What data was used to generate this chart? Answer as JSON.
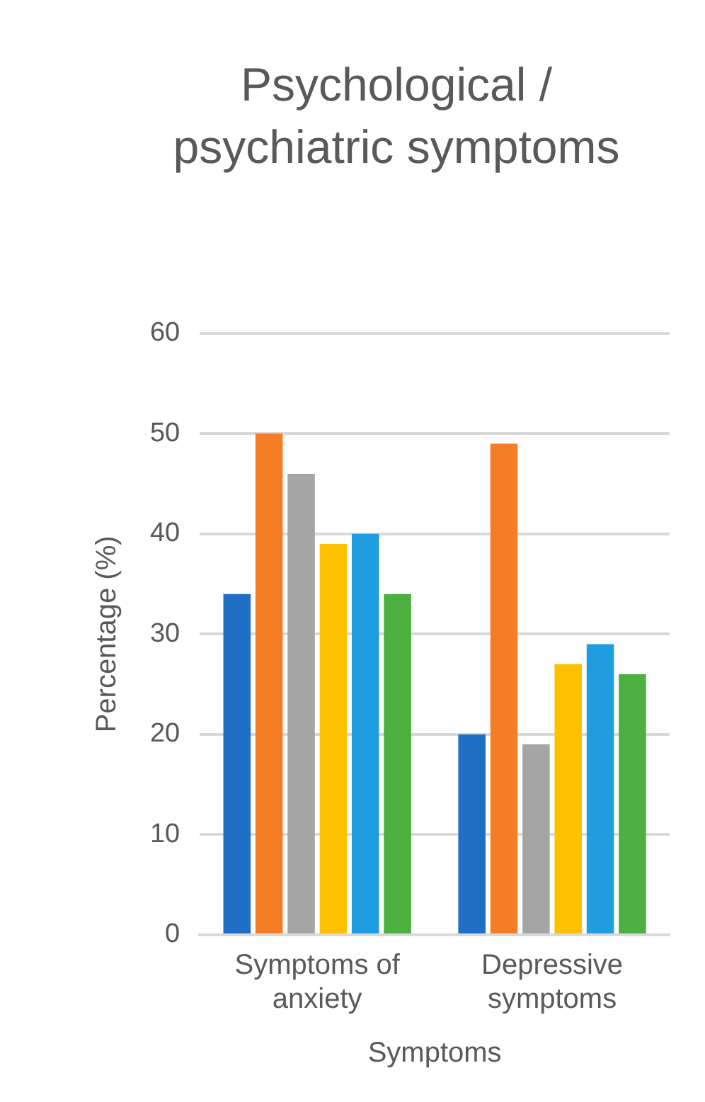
{
  "chart_data": {
    "type": "bar",
    "title": "Psychological / psychiatric symptoms",
    "xlabel": "Symptoms",
    "ylabel": "Percentage (%)",
    "categories": [
      "Symptoms of anxiety",
      "Depressive symptoms"
    ],
    "series": [
      {
        "color": "#1f6fc4",
        "values": [
          34,
          20
        ]
      },
      {
        "color": "#f57d25",
        "values": [
          50,
          49
        ]
      },
      {
        "color": "#a5a5a5",
        "values": [
          46,
          19
        ]
      },
      {
        "color": "#ffc000",
        "values": [
          39,
          27
        ]
      },
      {
        "color": "#1e9ee0",
        "values": [
          40,
          29
        ]
      },
      {
        "color": "#4caf3f",
        "values": [
          34,
          26
        ]
      }
    ],
    "ylim": [
      0,
      60
    ],
    "yticks": [
      0,
      10,
      20,
      30,
      40,
      50,
      60
    ],
    "grid": "y",
    "legend": false
  }
}
